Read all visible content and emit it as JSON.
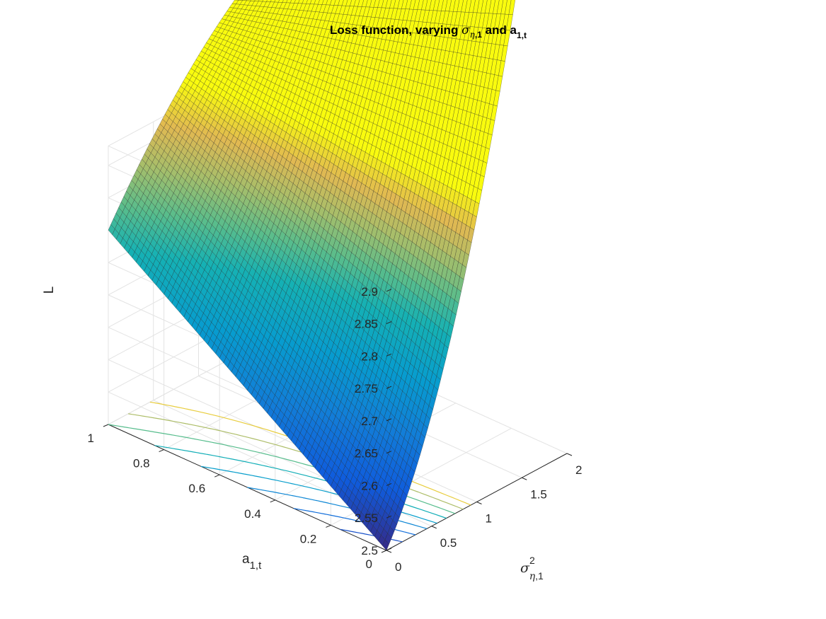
{
  "chart_data": {
    "type": "surface",
    "title": {
      "prefix": "Loss function, varying ",
      "sym1": "σ",
      "sym1_sub": "η",
      "sym1_sub2": ",1",
      "mid": " and a",
      "sub2": "1,t"
    },
    "zlabel": "L",
    "ylabel": {
      "main": "a",
      "sub": "1,t"
    },
    "xlabel": {
      "main": "σ",
      "sup": "2",
      "sub": "η",
      "sub2": ",1"
    },
    "x_ticks": [
      "0",
      "0.5",
      "1",
      "1.5",
      "2"
    ],
    "y_ticks": [
      "0",
      "0.2",
      "0.4",
      "0.6",
      "0.8",
      "1"
    ],
    "z_ticks": [
      "2.5",
      "2.55",
      "2.6",
      "2.65",
      "2.7",
      "2.75",
      "2.8",
      "2.85",
      "2.9"
    ],
    "xlim": [
      0,
      2
    ],
    "ylim": [
      0,
      1
    ],
    "zlim": [
      2.5,
      2.93
    ],
    "surface_samples": {
      "description_of_axes": "x = sigma^2_eta,1, y = a_1,t, z = L",
      "corners": [
        {
          "x": 0,
          "y": 0,
          "z": 2.5
        },
        {
          "x": 0,
          "y": 1,
          "z": 2.8
        },
        {
          "x": 2,
          "y": 1,
          "z": 2.93
        },
        {
          "x": 2,
          "y": 0,
          "z": 2.9
        }
      ],
      "points": [
        {
          "x": 1,
          "y": 0,
          "z": 2.69
        },
        {
          "x": 0.3,
          "y": 0,
          "z": 2.53
        },
        {
          "x": 2,
          "y": 0.5,
          "z": 2.66
        },
        {
          "x": 1,
          "y": 0.5,
          "z": 2.64
        }
      ]
    },
    "colormap": "parula",
    "grid": true,
    "contour_projection": true
  }
}
